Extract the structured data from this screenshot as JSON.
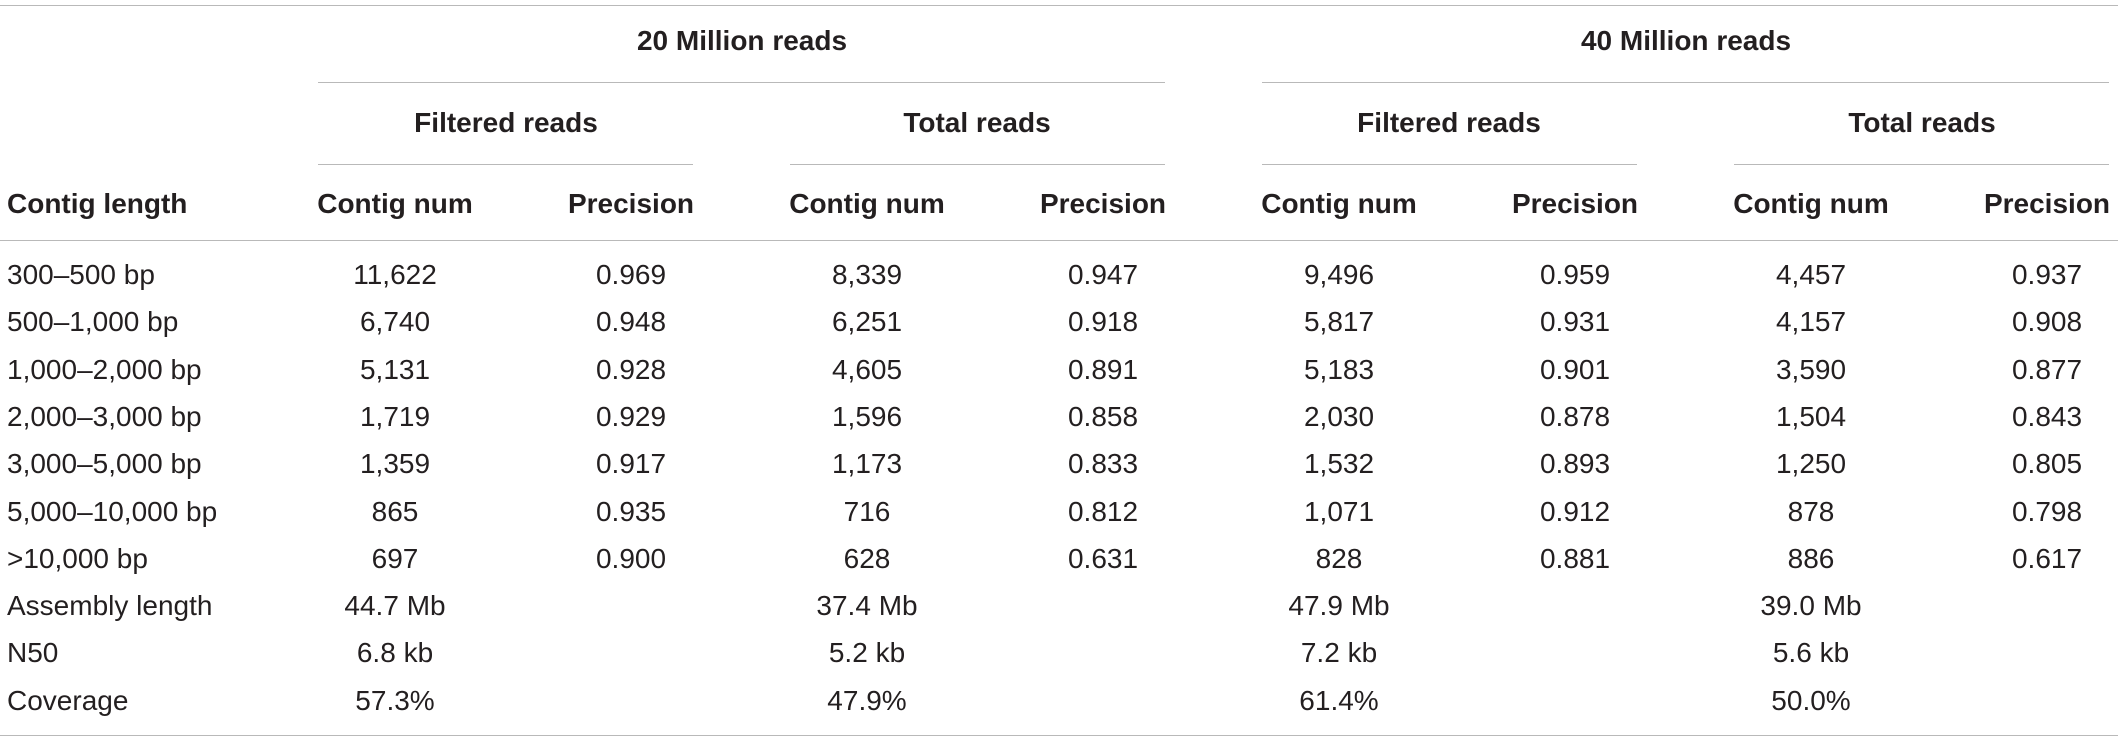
{
  "table": {
    "group_headers": [
      "20 Million reads",
      "40 Million reads"
    ],
    "subgroup_headers": [
      "Filtered reads",
      "Total reads",
      "Filtered reads",
      "Total reads"
    ],
    "column_headers": [
      "Contig length",
      "Contig num",
      "Precision",
      "Contig num",
      "Precision",
      "Contig num",
      "Precision",
      "Contig num",
      "Precision"
    ],
    "rows": [
      [
        "300–500 bp",
        "11,622",
        "0.969",
        "8,339",
        "0.947",
        "9,496",
        "0.959",
        "4,457",
        "0.937"
      ],
      [
        "500–1,000 bp",
        "6,740",
        "0.948",
        "6,251",
        "0.918",
        "5,817",
        "0.931",
        "4,157",
        "0.908"
      ],
      [
        "1,000–2,000 bp",
        "5,131",
        "0.928",
        "4,605",
        "0.891",
        "5,183",
        "0.901",
        "3,590",
        "0.877"
      ],
      [
        "2,000–3,000 bp",
        "1,719",
        "0.929",
        "1,596",
        "0.858",
        "2,030",
        "0.878",
        "1,504",
        "0.843"
      ],
      [
        "3,000–5,000 bp",
        "1,359",
        "0.917",
        "1,173",
        "0.833",
        "1,532",
        "0.893",
        "1,250",
        "0.805"
      ],
      [
        "5,000–10,000 bp",
        "865",
        "0.935",
        "716",
        "0.812",
        "1,071",
        "0.912",
        "878",
        "0.798"
      ],
      [
        ">10,000 bp",
        "697",
        "0.900",
        "628",
        "0.631",
        "828",
        "0.881",
        "886",
        "0.617"
      ],
      [
        "Assembly length",
        "44.7 Mb",
        "",
        "37.4 Mb",
        "",
        "47.9 Mb",
        "",
        "39.0 Mb",
        ""
      ],
      [
        "N50",
        "6.8 kb",
        "",
        "5.2 kb",
        "",
        "7.2 kb",
        "",
        "5.6 kb",
        ""
      ],
      [
        "Coverage",
        "57.3%",
        "",
        "47.9%",
        "",
        "61.4%",
        "",
        "50.0%",
        ""
      ]
    ]
  }
}
